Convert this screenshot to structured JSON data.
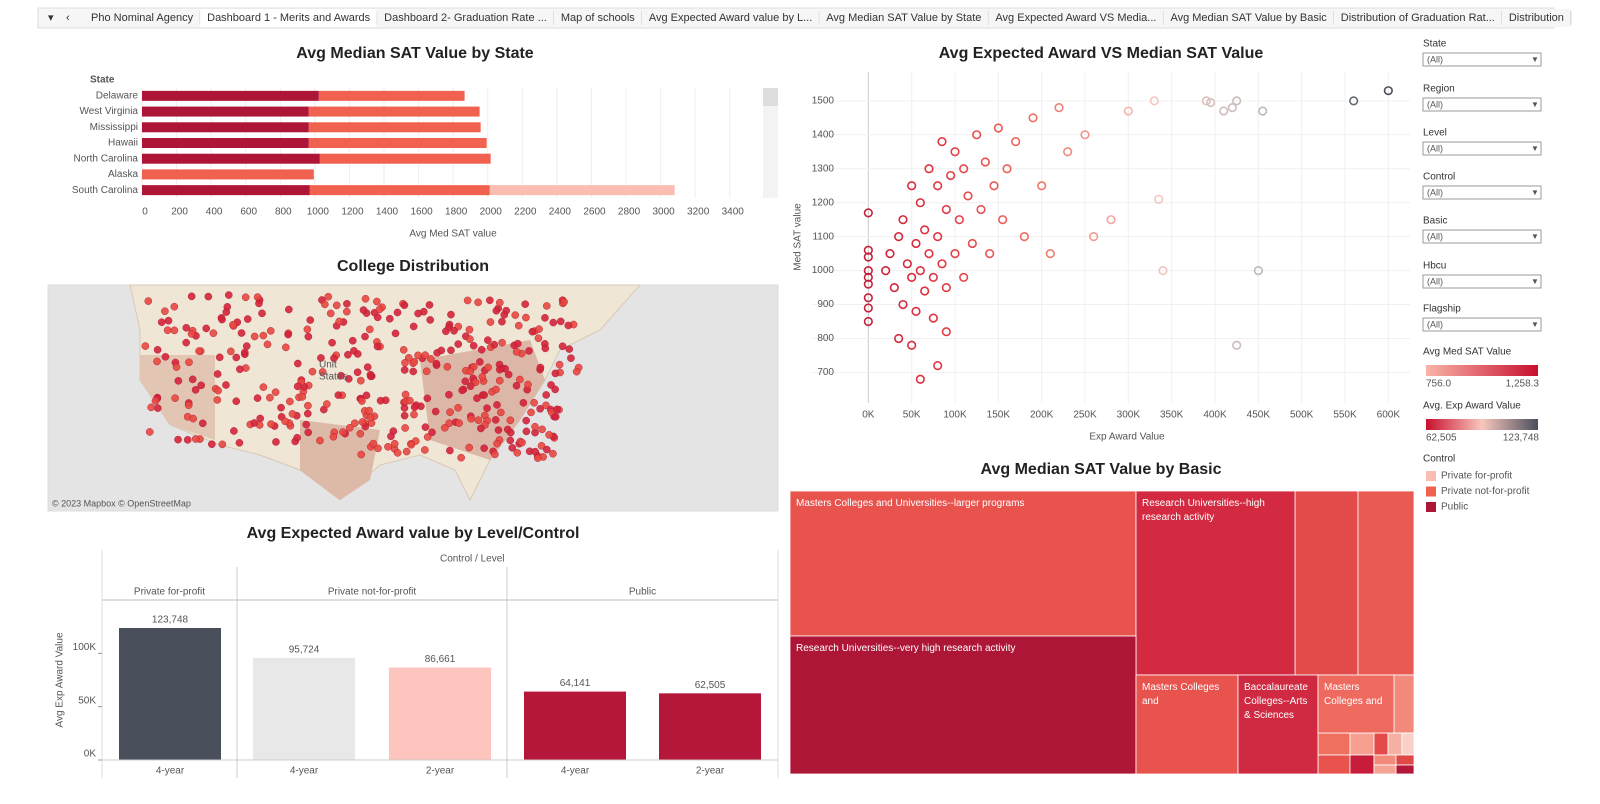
{
  "tabs": [
    "Pho Nominal Agency",
    "Dashboard 1 - Merits and Awards",
    "Dashboard 2- Graduation Rate ...",
    "Map of schools",
    "Avg Expected Award value by L...",
    "Avg Median SAT Value by State",
    "Avg Expected Award VS Media...",
    "Avg Median SAT Value by Basic",
    "Distribution of Graduation Rat...",
    "Distribution"
  ],
  "active_tab": "Dashboard 1 - Merits and Awards",
  "filters": [
    {
      "label": "State",
      "value": "(All)"
    },
    {
      "label": "Region",
      "value": "(All)"
    },
    {
      "label": "Level",
      "value": "(All)"
    },
    {
      "label": "Control",
      "value": "(All)"
    },
    {
      "label": "Basic",
      "value": "(All)"
    },
    {
      "label": "Hbcu",
      "value": "(All)"
    },
    {
      "label": "Flagship",
      "value": "(All)"
    }
  ],
  "legends": [
    {
      "title": "Avg Med SAT Value",
      "colors": [
        "#f9b4a8",
        "#c8102e"
      ],
      "min": {
        "value": 756.0,
        "label": "756.0"
      },
      "max": {
        "value": 1258.3,
        "label": "1,258.3"
      }
    },
    {
      "title": "Avg. Exp Award Value",
      "colors": [
        "#c8102e",
        "#f9c6bd",
        "#4a4f5c"
      ],
      "min": {
        "value": 62505,
        "label": "62,505"
      },
      "max": {
        "value": 123748,
        "label": "123,748"
      }
    }
  ],
  "control_legend_title": "Control",
  "chart_data": [
    {
      "type": "hbar-stacked",
      "title": "Avg Median SAT Value by State",
      "category_title": "State",
      "x_title": "Avg Med SAT value",
      "categories": [
        "Delaware",
        "West Virginia",
        "Mississippi",
        "Hawaii",
        "North Carolina",
        "Alaska",
        "South Carolina"
      ],
      "series": [
        {
          "name": "Private for-profit",
          "color": "#fbbdb2",
          "values": [
            null,
            null,
            null,
            null,
            null,
            null,
            1069
          ]
        },
        {
          "name": "Private not-for-profit",
          "color": "#f0614f",
          "values": [
            843,
            988,
            994,
            1029,
            988,
            994,
            1041
          ]
        },
        {
          "name": "Public",
          "color": "#ad1637",
          "values": [
            1023,
            965,
            965,
            965,
            1029,
            null,
            971
          ]
        }
      ],
      "xlim": [
        0,
        3575
      ],
      "xticks": [
        0,
        200,
        400,
        600,
        800,
        1000,
        1200,
        1400,
        1600,
        1800,
        2000,
        2200,
        2400,
        2600,
        2800,
        3000,
        3200,
        3400
      ],
      "grid": true
    },
    {
      "type": "map",
      "title": "College Distribution",
      "labels": [
        "Unit",
        "States"
      ],
      "attribution": "© 2023 Mapbox  © OpenStreetMap"
    },
    {
      "type": "bar-grouped",
      "title": "Avg Expected Award value by Level/Control",
      "header": "Control / Level",
      "y_title": "Avg Exp Award Value",
      "groups": [
        {
          "name": "Private for-profit",
          "categories": [
            "4-year"
          ],
          "values": [
            123748
          ],
          "value_labels": [
            "123,748"
          ],
          "colors": [
            "#4a4f5c"
          ]
        },
        {
          "name": "Private not-for-profit",
          "categories": [
            "4-year",
            "2-year"
          ],
          "values": [
            95724,
            86661
          ],
          "value_labels": [
            "95,724",
            "86,661"
          ],
          "colors": [
            "#e8e8e8",
            "#fdc5bd"
          ]
        },
        {
          "name": "Public",
          "categories": [
            "4-year",
            "2-year"
          ],
          "values": [
            64141,
            62505
          ],
          "value_labels": [
            "64,141",
            "62,505"
          ],
          "colors": [
            "#b5173a",
            "#b5173a"
          ]
        }
      ],
      "ylim": [
        0,
        150000
      ],
      "yticks": [
        {
          "value": 0,
          "label": "0K"
        },
        {
          "value": 50000,
          "label": "50K"
        },
        {
          "value": 100000,
          "label": "100K"
        }
      ]
    },
    {
      "type": "scatter",
      "title": "Avg Expected Award VS Median SAT Value",
      "x_title": "Exp Award Value",
      "y_title": "Med SAT value",
      "x": [
        0,
        0,
        0,
        0,
        0,
        0,
        0,
        0,
        0,
        20000,
        25000,
        30000,
        35000,
        40000,
        40000,
        45000,
        50000,
        50000,
        55000,
        55000,
        60000,
        60000,
        65000,
        65000,
        70000,
        70000,
        75000,
        75000,
        80000,
        80000,
        85000,
        85000,
        90000,
        90000,
        95000,
        100000,
        100000,
        105000,
        110000,
        110000,
        115000,
        120000,
        125000,
        130000,
        135000,
        140000,
        145000,
        150000,
        155000,
        160000,
        170000,
        180000,
        190000,
        200000,
        210000,
        220000,
        230000,
        250000,
        260000,
        280000,
        300000,
        330000,
        335000,
        340000,
        390000,
        395000,
        410000,
        420000,
        425000,
        425000,
        450000,
        455000,
        560000,
        600000,
        35000,
        50000,
        80000,
        60000,
        90000
      ],
      "y": [
        1170,
        1060,
        1040,
        1000,
        980,
        960,
        920,
        890,
        850,
        1000,
        1050,
        950,
        1100,
        900,
        1150,
        1020,
        980,
        1250,
        1080,
        880,
        1000,
        1200,
        1120,
        940,
        1050,
        1300,
        980,
        860,
        1100,
        1250,
        1020,
        1380,
        950,
        1180,
        1280,
        1050,
        1350,
        1150,
        980,
        1300,
        1220,
        1080,
        1400,
        1180,
        1320,
        1050,
        1250,
        1420,
        1150,
        1300,
        1380,
        1100,
        1450,
        1250,
        1050,
        1480,
        1350,
        1400,
        1100,
        1150,
        1470,
        1500,
        1210,
        1000,
        1500,
        1495,
        1470,
        1480,
        1500,
        780,
        1000,
        1470,
        1500,
        1530,
        800,
        780,
        720,
        680,
        820
      ],
      "color_stops": [
        "#a8143a",
        "#e0303f",
        "#ef7466",
        "#f7c6bf",
        "#b9b9b9",
        "#4a4f5c"
      ],
      "xlim": [
        -65000,
        625000
      ],
      "ylim": [
        610,
        1585
      ],
      "xticks": [
        {
          "value": 0,
          "label": "0K"
        },
        {
          "value": 50000,
          "label": "50K"
        },
        {
          "value": 100000,
          "label": "100K"
        },
        {
          "value": 150000,
          "label": "150K"
        },
        {
          "value": 200000,
          "label": "200K"
        },
        {
          "value": 250000,
          "label": "250K"
        },
        {
          "value": 300000,
          "label": "300K"
        },
        {
          "value": 350000,
          "label": "350K"
        },
        {
          "value": 400000,
          "label": "400K"
        },
        {
          "value": 450000,
          "label": "450K"
        },
        {
          "value": 500000,
          "label": "500K"
        },
        {
          "value": 550000,
          "label": "550K"
        },
        {
          "value": 600000,
          "label": "600K"
        }
      ],
      "yticks": [
        700,
        800,
        900,
        1000,
        1100,
        1200,
        1300,
        1400,
        1500
      ],
      "grid": true
    },
    {
      "type": "treemap",
      "title": "Avg Median SAT Value by Basic",
      "nodes": [
        {
          "label": "Masters Colleges and Universities--larger programs",
          "color": "#e8534e"
        },
        {
          "label": "Research Universities--high research activity",
          "color": "#d42a41"
        },
        {
          "label": "Research Universities--very high research activity",
          "color": "#ad1637"
        },
        {
          "label": "Masters Colleges and",
          "color": "#e8534e"
        },
        {
          "label": "Baccalaureate Colleges--Arts & Sciences",
          "color": "#cf2a42"
        },
        {
          "label": "Masters Colleges and",
          "color": "#ef6a5e"
        }
      ]
    }
  ]
}
